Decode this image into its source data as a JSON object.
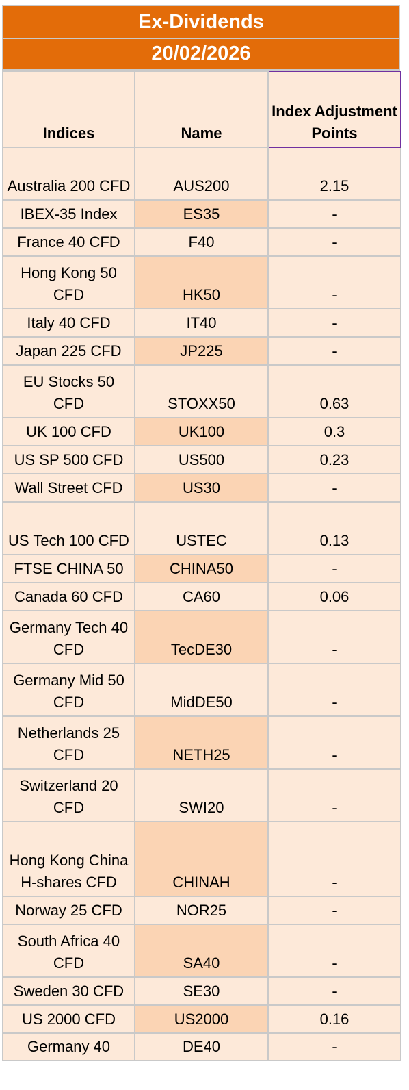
{
  "title": "Ex-Dividends",
  "date": "20/02/2026",
  "headers": {
    "indices": "Indices",
    "name": "Name",
    "points": "Index Adjustment Points"
  },
  "rows": [
    {
      "indices": "Australia 200 CFD",
      "name": "AUS200",
      "points": "2.15"
    },
    {
      "indices": "IBEX-35 Index",
      "name": "ES35",
      "points": "-"
    },
    {
      "indices": "France 40 CFD",
      "name": "F40",
      "points": "-"
    },
    {
      "indices": "Hong Kong 50 CFD",
      "name": "HK50",
      "points": "-"
    },
    {
      "indices": "Italy 40 CFD",
      "name": "IT40",
      "points": "-"
    },
    {
      "indices": "Japan 225 CFD",
      "name": "JP225",
      "points": "-"
    },
    {
      "indices": "EU Stocks 50 CFD",
      "name": "STOXX50",
      "points": "0.63"
    },
    {
      "indices": "UK 100 CFD",
      "name": "UK100",
      "points": "0.3"
    },
    {
      "indices": "US SP 500 CFD",
      "name": "US500",
      "points": "0.23"
    },
    {
      "indices": "Wall Street CFD",
      "name": "US30",
      "points": "-"
    },
    {
      "indices": "US Tech 100 CFD",
      "name": "USTEC",
      "points": "0.13"
    },
    {
      "indices": "FTSE CHINA 50",
      "name": "CHINA50",
      "points": "-"
    },
    {
      "indices": "Canada 60 CFD",
      "name": "CA60",
      "points": "0.06"
    },
    {
      "indices": "Germany Tech 40 CFD",
      "name": "TecDE30",
      "points": "-"
    },
    {
      "indices": "Germany Mid 50 CFD",
      "name": "MidDE50",
      "points": "-"
    },
    {
      "indices": "Netherlands 25 CFD",
      "name": "NETH25",
      "points": "-"
    },
    {
      "indices": "Switzerland 20 CFD",
      "name": "SWI20",
      "points": "-"
    },
    {
      "indices": "Hong Kong China H-shares CFD",
      "name": "CHINAH",
      "points": "-"
    },
    {
      "indices": "Norway 25 CFD",
      "name": "NOR25",
      "points": "-"
    },
    {
      "indices": "South Africa 40 CFD",
      "name": "SA40",
      "points": "-"
    },
    {
      "indices": "Sweden 30 CFD",
      "name": "SE30",
      "points": "-"
    },
    {
      "indices": "US 2000 CFD",
      "name": "US2000",
      "points": "0.16"
    },
    {
      "indices": "Germany 40",
      "name": "DE40",
      "points": "-"
    }
  ]
}
